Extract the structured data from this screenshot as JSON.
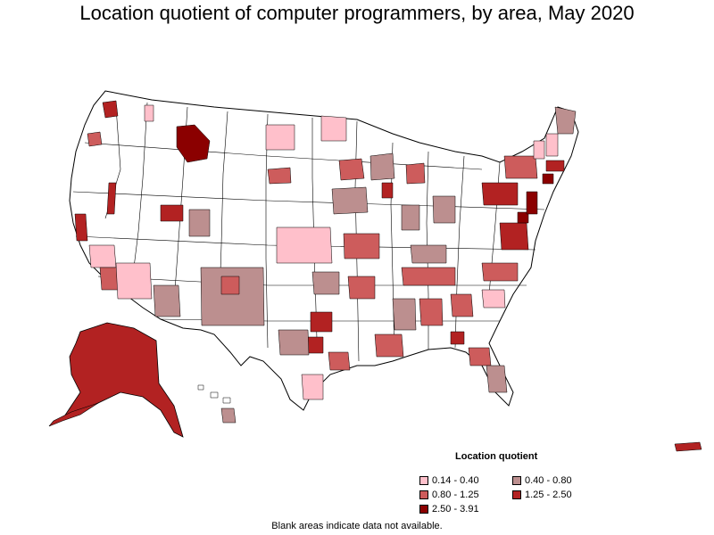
{
  "title": "Location quotient of computer programmers, by area, May 2020",
  "legend": {
    "title": "Location quotient",
    "items": [
      {
        "label": "0.14 - 0.40",
        "color": "#ffc0cb"
      },
      {
        "label": "0.40 - 0.80",
        "color": "#bc8f8f"
      },
      {
        "label": "0.80 - 1.25",
        "color": "#cd5c5c"
      },
      {
        "label": "1.25 - 2.50",
        "color": "#b22222"
      },
      {
        "label": "2.50 - 3.91",
        "color": "#8b0000"
      }
    ]
  },
  "footnote": "Blank areas indicate data not available.",
  "colors": {
    "border": "#000000",
    "blank": "#ffffff",
    "class_1": "#ffc0cb",
    "class_2": "#bc8f8f",
    "class_3": "#cd5c5c",
    "class_4": "#b22222",
    "class_5": "#8b0000"
  }
}
